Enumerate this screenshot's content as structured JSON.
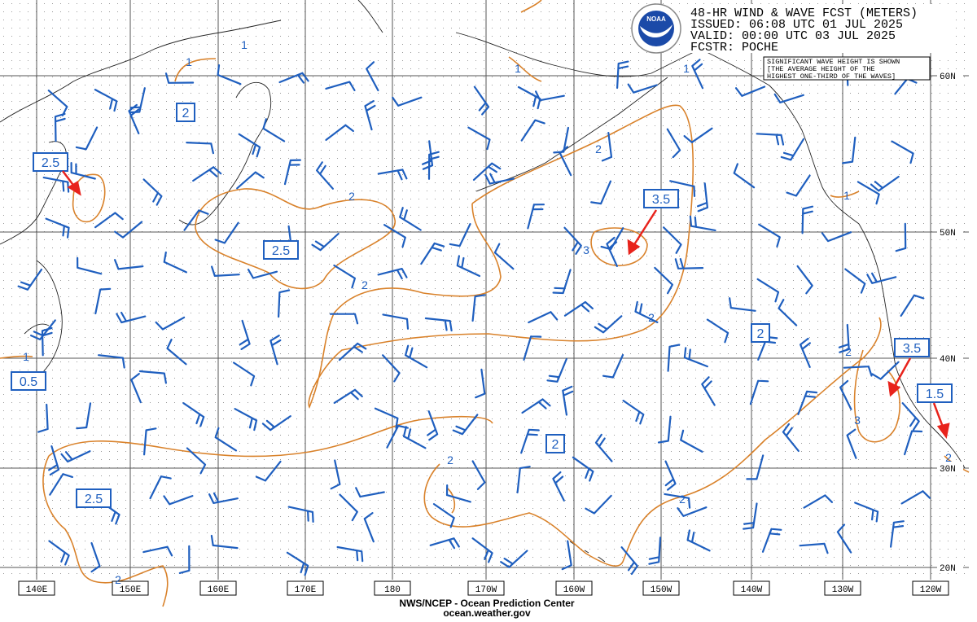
{
  "header": {
    "lines": [
      "48-HR WIND & WAVE FCST (METERS)",
      "ISSUED: 06:08 UTC 01 JUL 2025",
      "VALID:  00:00 UTC 03 JUL 2025",
      "FCSTR: POCHE"
    ]
  },
  "note": {
    "lines": [
      "SIGNIFICANT WAVE HEIGHT IS SHOWN",
      "[THE AVERAGE HEIGHT OF THE",
      "HIGHEST ONE-THIRD OF THE WAVES]"
    ]
  },
  "logo": "NOAA",
  "lat_labels": [
    "60N",
    "50N",
    "40N",
    "30N",
    "20N"
  ],
  "lon_labels": [
    "140E",
    "150E",
    "160E",
    "170E",
    "180",
    "170W",
    "160W",
    "150W",
    "140W",
    "130W",
    "120W"
  ],
  "boxed_labels": [
    "2",
    "2.5",
    "2.5",
    "3.5",
    "2",
    "2",
    "3.5",
    "1.5",
    "0.5",
    "2.5"
  ],
  "contour_labels": [
    "1",
    "1",
    "1",
    "1",
    "2",
    "2",
    "3",
    "2",
    "2",
    "1",
    "1",
    "2",
    "3",
    "2",
    "2",
    "2",
    "2"
  ],
  "footer": [
    "NWS/NCEP - Ocean Prediction Center",
    "ocean.weather.gov"
  ]
}
